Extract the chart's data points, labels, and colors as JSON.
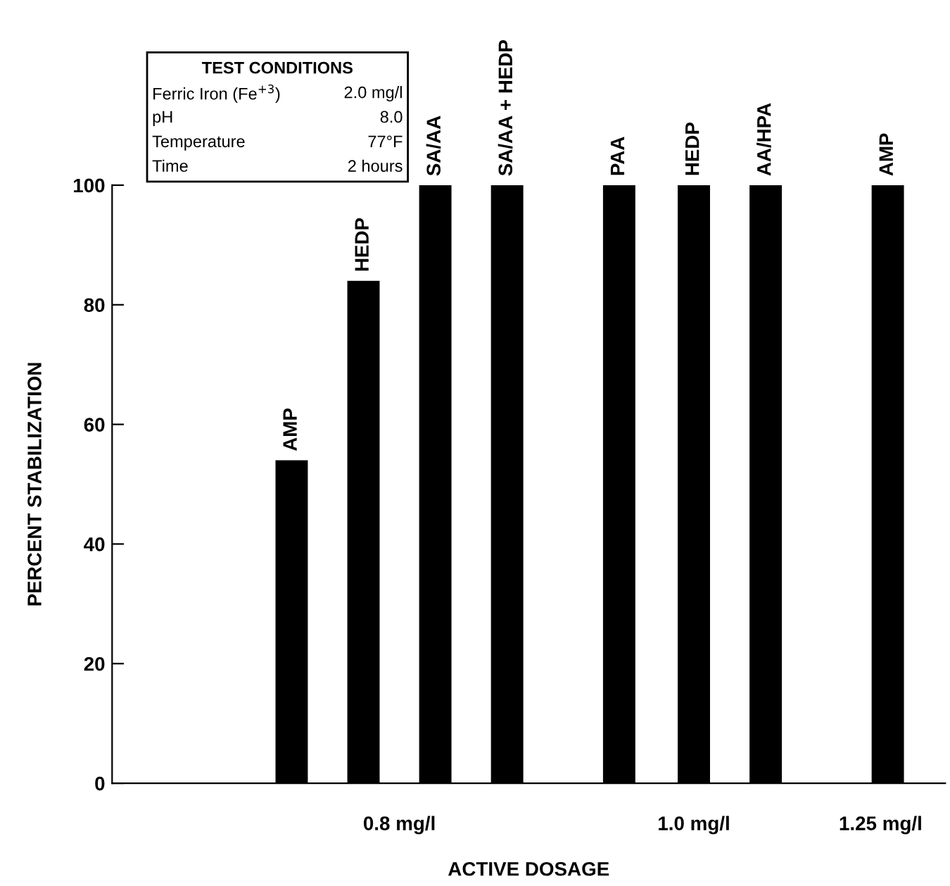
{
  "chart_data": {
    "type": "bar",
    "xlabel": "ACTIVE DOSAGE",
    "ylabel": "PERCENT STABILIZATION",
    "categories": [
      "AMP",
      "HEDP",
      "SA/AA",
      "SA/AA + HEDP",
      "PAA",
      "HEDP",
      "AA/HPA",
      "AMP"
    ],
    "values": [
      54,
      84,
      100,
      100,
      100,
      100,
      100,
      100
    ],
    "color": "#000000",
    "ylim": [
      0,
      100
    ],
    "yticks": [
      0,
      20,
      40,
      60,
      80,
      100
    ],
    "grid": false,
    "legend": false,
    "annotations": [
      "0.8 mg/l",
      "1.0 mg/l",
      "1.25 mg/l",
      "TEST CONDITIONS",
      "Ferric Iron (Fe$^{+3}$)",
      "2.0 mg/l",
      "pH",
      "8.0",
      "Temperature",
      "77°F",
      "Time",
      "2 hours"
    ]
  }
}
